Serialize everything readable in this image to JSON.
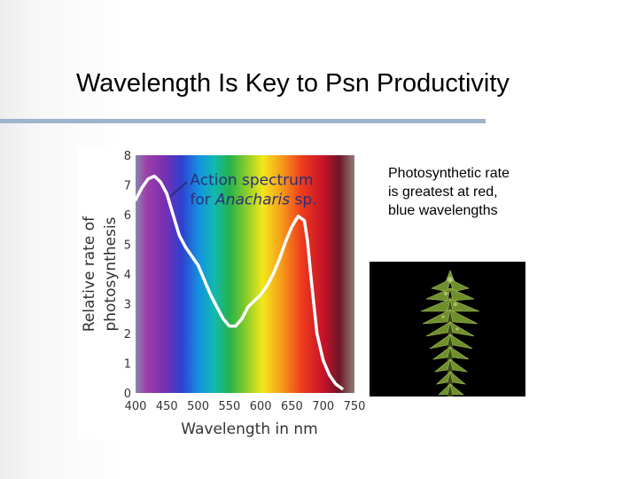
{
  "slide": {
    "title": "Wavelength Is Key to Psn Productivity",
    "caption": "Photosynthetic rate is greatest at  red, blue wavelengths",
    "accent_rule_color": "#9eb3cc"
  },
  "photo": {
    "icon": "anacharis-plant-photo"
  },
  "chart_data": {
    "type": "line",
    "annotation_line1": "Action spectrum",
    "annotation_line2_prefix": "for ",
    "annotation_line2_italic": "Anacharis",
    "annotation_line2_suffix": " sp.",
    "xlabel": "Wavelength in nm",
    "ylabel_line1": "Relative rate of",
    "ylabel_line2": "photosynthesis",
    "xlim": [
      400,
      750
    ],
    "ylim": [
      0,
      8
    ],
    "xticks": [
      400,
      450,
      500,
      550,
      600,
      650,
      700,
      750
    ],
    "yticks": [
      0,
      1,
      2,
      3,
      4,
      5,
      6,
      7,
      8
    ],
    "background": "visible-spectrum",
    "line_color": "#ffffff",
    "series": [
      {
        "x": [
          400,
          410,
          420,
          430,
          440,
          450,
          460,
          470,
          480,
          490,
          500,
          510,
          520,
          530,
          540,
          550,
          560,
          570,
          580,
          590,
          600,
          610,
          620,
          630,
          640,
          650,
          660,
          670,
          675,
          680,
          685,
          690,
          700,
          710,
          720,
          730
        ],
        "y": [
          6.5,
          6.9,
          7.2,
          7.3,
          7.1,
          6.7,
          6.0,
          5.3,
          4.9,
          4.6,
          4.3,
          3.8,
          3.3,
          2.9,
          2.5,
          2.25,
          2.25,
          2.5,
          2.9,
          3.1,
          3.3,
          3.6,
          4.0,
          4.5,
          5.1,
          5.6,
          5.95,
          5.8,
          5.1,
          4.0,
          3.0,
          2.0,
          1.1,
          0.6,
          0.3,
          0.15
        ]
      }
    ]
  }
}
